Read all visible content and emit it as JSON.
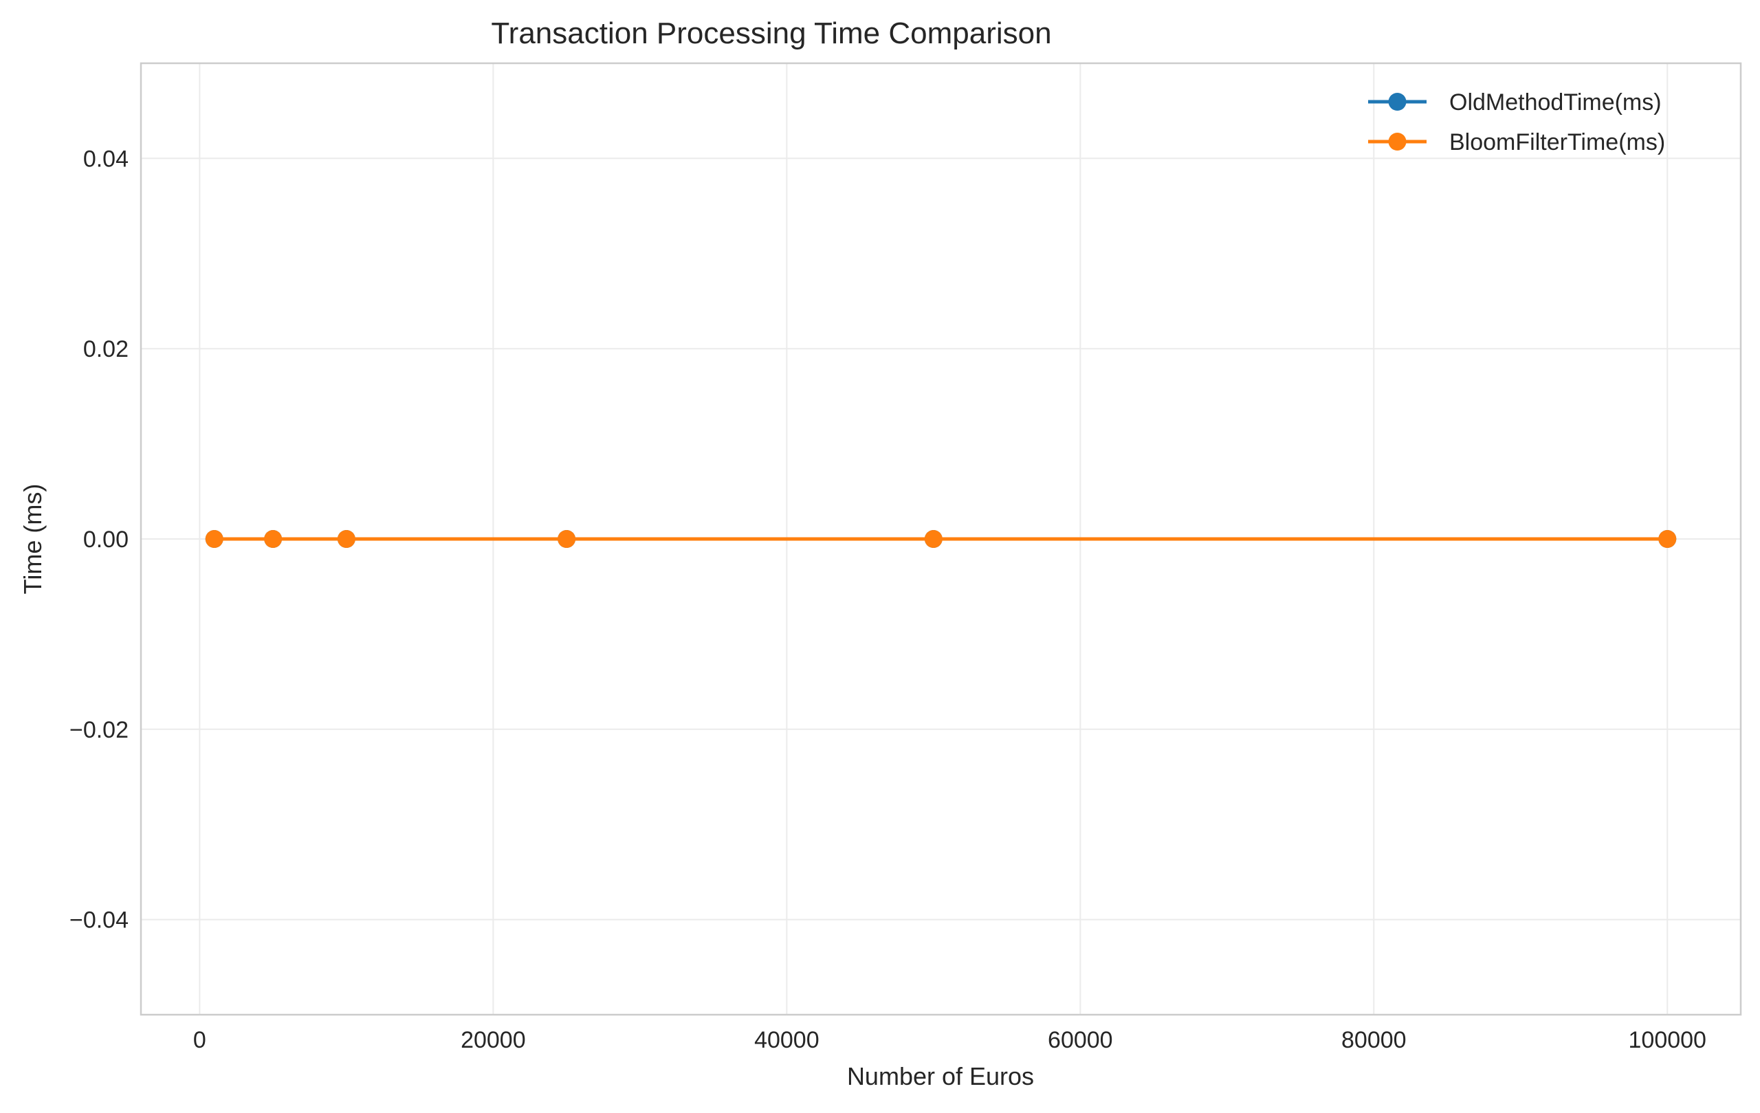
{
  "chart_data": {
    "type": "line",
    "title": "Transaction Processing Time Comparison",
    "xlabel": "Number of Euros",
    "ylabel": "Time (ms)",
    "xlim": [
      -4000,
      105000
    ],
    "ylim": [
      -0.05,
      0.05
    ],
    "x_ticks": [
      0,
      20000,
      40000,
      60000,
      80000,
      100000
    ],
    "x_tick_labels": [
      "0",
      "20000",
      "40000",
      "60000",
      "80000",
      "100000"
    ],
    "y_ticks": [
      -0.04,
      -0.02,
      0.0,
      0.02,
      0.04
    ],
    "y_tick_labels": [
      "−0.04",
      "−0.02",
      "0.00",
      "0.02",
      "0.04"
    ],
    "grid": true,
    "legend_position": "top-right",
    "x": [
      1000,
      5000,
      10000,
      25000,
      50000,
      100000
    ],
    "series": [
      {
        "name": "OldMethodTime(ms)",
        "values": [
          0,
          0,
          0,
          0,
          0,
          0
        ],
        "color": "#1f77b4"
      },
      {
        "name": "BloomFilterTime(ms)",
        "values": [
          0,
          0,
          0,
          0,
          0,
          0
        ],
        "color": "#ff7f0e"
      }
    ],
    "colors": {
      "grid": "#ebebeb",
      "spine": "#cccccc",
      "text": "#262626"
    }
  }
}
